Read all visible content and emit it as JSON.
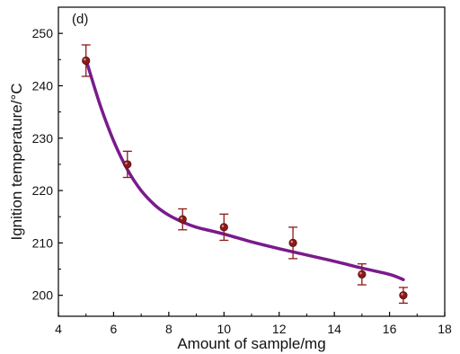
{
  "chart_data": {
    "type": "scatter",
    "panel_label": "(d)",
    "title": "",
    "xlabel": "Amount of sample/mg",
    "ylabel": "Ignition temperature/°C",
    "xlim": [
      4,
      18
    ],
    "ylim": [
      196,
      255
    ],
    "xticks": [
      4,
      6,
      8,
      10,
      12,
      14,
      16,
      18
    ],
    "yticks": [
      200,
      210,
      220,
      230,
      240,
      250
    ],
    "grid": false,
    "legend": "none",
    "colors": {
      "marker": "#8b1a1a",
      "errorbar": "#8b1a1a",
      "fit": "#7a1a8c",
      "axis": "#000000"
    },
    "series": [
      {
        "x": [
          5,
          6.5,
          8.5,
          10,
          12.5,
          15,
          16.5
        ],
        "y": [
          244.8,
          225.0,
          214.5,
          213.0,
          210.0,
          204.0,
          200.0
        ],
        "error": [
          3.0,
          2.5,
          2.0,
          2.5,
          3.0,
          2.0,
          1.5
        ]
      }
    ],
    "fit_curve": {
      "x": [
        5,
        5.5,
        6,
        6.5,
        7,
        7.5,
        8,
        8.5,
        9,
        10,
        11,
        12,
        13,
        14,
        15,
        16,
        16.5
      ],
      "y": [
        245.0,
        236.5,
        229.5,
        224.0,
        220.0,
        217.2,
        215.3,
        214.0,
        213.0,
        211.7,
        210.2,
        208.9,
        207.7,
        206.5,
        205.2,
        204.0,
        203.0
      ]
    }
  }
}
